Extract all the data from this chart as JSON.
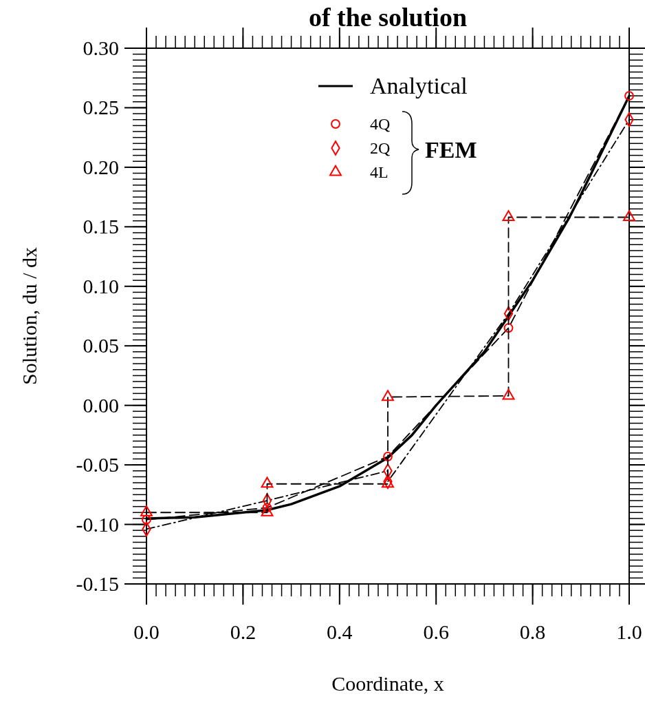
{
  "chart_data": {
    "type": "line",
    "title": "of the solution",
    "xlabel": "Coordinate, x",
    "ylabel": "Solution, du / dx",
    "xlim": [
      0,
      1
    ],
    "ylim": [
      -0.15,
      0.3
    ],
    "xticks": [
      {
        "value": 0,
        "label": "0.0"
      },
      {
        "value": 0.2,
        "label": "0.2"
      },
      {
        "value": 0.4,
        "label": "0.4"
      },
      {
        "value": 0.6,
        "label": "0.6"
      },
      {
        "value": 0.8,
        "label": "0.8"
      },
      {
        "value": 1,
        "label": "1.0"
      }
    ],
    "yticks": [
      {
        "value": -0.15,
        "label": "-0.15"
      },
      {
        "value": -0.1,
        "label": "-0.10"
      },
      {
        "value": -0.05,
        "label": "-0.05"
      },
      {
        "value": 0,
        "label": "0.00"
      },
      {
        "value": 0.05,
        "label": "0.05"
      },
      {
        "value": 0.1,
        "label": "0.10"
      },
      {
        "value": 0.15,
        "label": "0.15"
      },
      {
        "value": 0.2,
        "label": "0.20"
      },
      {
        "value": 0.25,
        "label": "0.25"
      },
      {
        "value": 0.3,
        "label": "0.30"
      }
    ],
    "grid": false,
    "legend": "top",
    "annotations": [
      "FEM"
    ],
    "series": [
      {
        "name": "Analytical",
        "color": "#000000",
        "marker": "none",
        "line_style": "solid",
        "x": [
          0,
          0.1,
          0.2,
          0.25,
          0.3,
          0.4,
          0.5,
          0.55,
          0.6,
          0.7,
          0.8,
          0.875,
          0.9,
          1
        ],
        "values": [
          -0.095,
          -0.094,
          -0.09,
          -0.088,
          -0.083,
          -0.068,
          -0.044,
          -0.025,
          0,
          0.045,
          0.105,
          0.157,
          0.177,
          0.26
        ]
      },
      {
        "name": "4Q",
        "color": "#ff0000",
        "marker": "circle",
        "line_style": "dashed",
        "x": [
          0,
          0.25,
          0.5,
          0.75,
          1
        ],
        "values": [
          -0.096,
          -0.086,
          -0.043,
          0.065,
          0.26
        ]
      },
      {
        "name": "2Q",
        "color": "#ff0000",
        "marker": "diamond",
        "line_style": "dotted",
        "x": [
          0,
          0.25,
          0.5,
          0.5,
          0.75,
          1
        ],
        "values": [
          -0.104,
          -0.08,
          -0.055,
          -0.064,
          0.077,
          0.24
        ]
      },
      {
        "name": "4L",
        "color": "#ff0000",
        "marker": "triangle",
        "line_style": "dashed",
        "x": [
          0,
          0.25,
          0.25,
          0.5,
          0.5,
          0.75,
          0.75,
          1
        ],
        "values": [
          -0.09,
          -0.09,
          -0.066,
          -0.066,
          0.007,
          0.008,
          0.158,
          0.158
        ]
      }
    ]
  }
}
